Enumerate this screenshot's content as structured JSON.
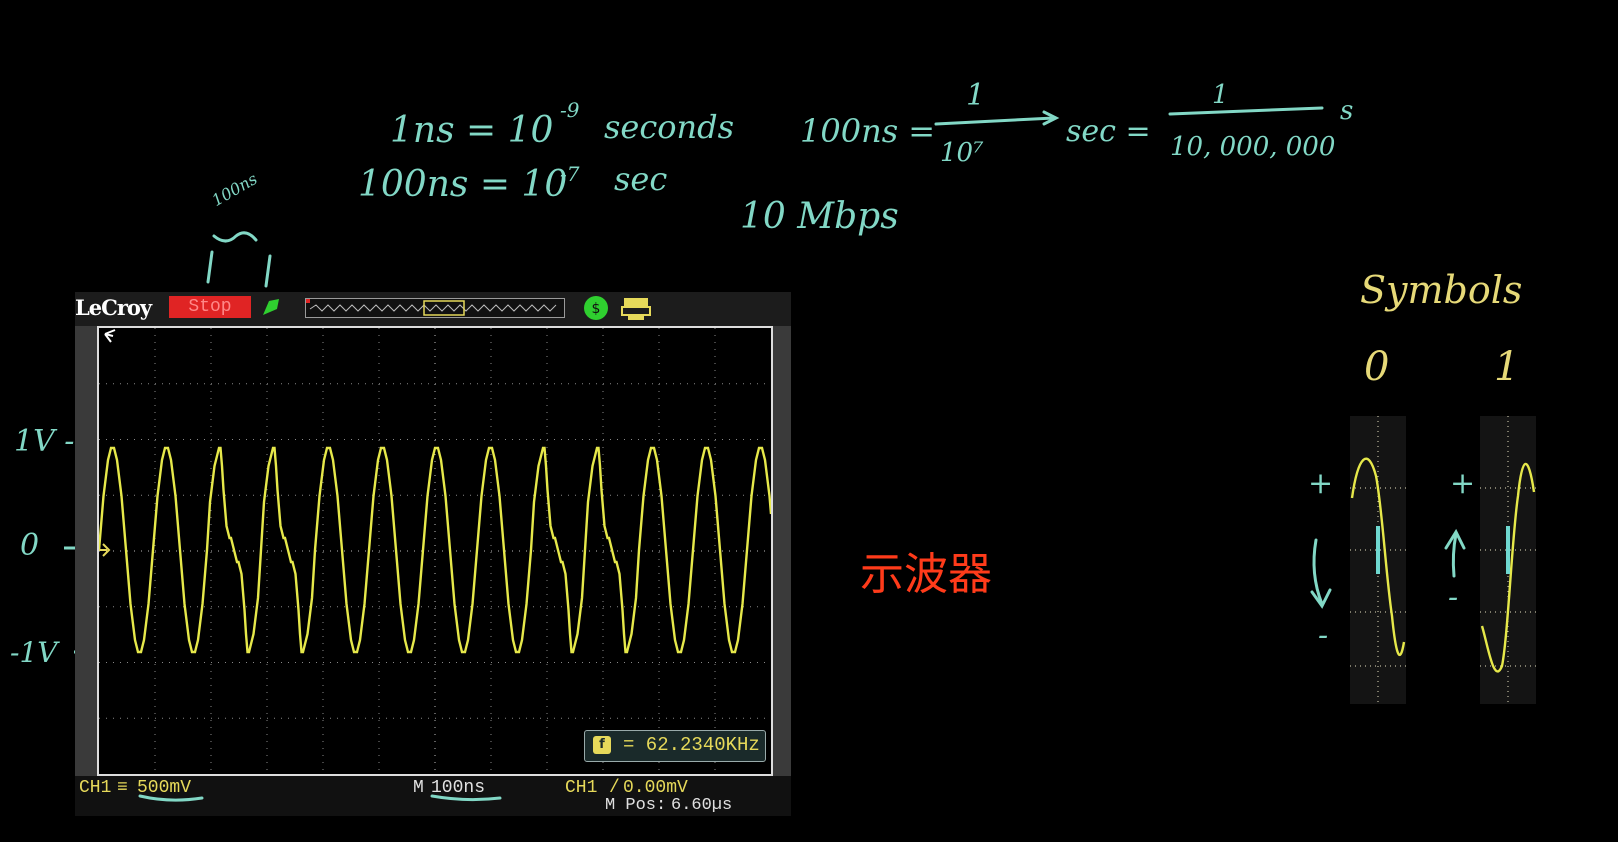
{
  "notes": {
    "line1_a": "1ns = 10",
    "line1_exp": "-9",
    "line1_b": "seconds",
    "line2_a": "100ns = 10",
    "line2_exp": "-7",
    "line2_b": "sec",
    "line3_a": "100ns =",
    "frac1_num": "1",
    "frac1_den": "10⁷",
    "line3_b": "sec =",
    "frac2_num": "1",
    "frac2_den": "10, 000, 000",
    "line3_c": "s",
    "speed": "10 Mbps",
    "bracket": "100ns",
    "v_plus": "1V -",
    "v_zero": "0",
    "v_minus": "-1V"
  },
  "scope": {
    "brand": "LeCroy",
    "status": "Stop",
    "ch1_label": "CH1",
    "ch1_scale": "500mV",
    "timebase_label": "M",
    "timebase": "100ns",
    "trigger": "CH1",
    "trigger_level": "0.00mV",
    "mpos_label": "M Pos:",
    "mpos": "6.60µs",
    "freq_value": "= 62.2340KHz"
  },
  "symbols": {
    "title": "Symbols",
    "sym0": "0",
    "sym1": "1",
    "plus": "+",
    "minus": "-"
  },
  "caption": "示波器",
  "colors": {
    "trace": "#e6e84a",
    "chalk": "#82d8c6",
    "caption": "#ff3b1a",
    "stop_bg": "#e02424"
  }
}
